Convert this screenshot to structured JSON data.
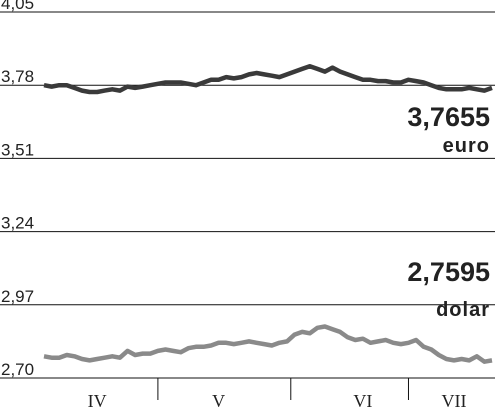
{
  "chart_data": {
    "type": "line",
    "categories": [
      null,
      null,
      null,
      null,
      null,
      null,
      null,
      "IV",
      null,
      null,
      null,
      null,
      null,
      null,
      null,
      null,
      null,
      null,
      null,
      null,
      null,
      null,
      null,
      "V",
      null,
      null,
      null,
      null,
      null,
      null,
      null,
      null,
      null,
      null,
      null,
      null,
      null,
      null,
      null,
      null,
      null,
      null,
      "VI",
      null,
      null,
      null,
      null,
      null,
      null,
      null,
      null,
      null,
      null,
      null,
      "VII",
      null,
      null,
      null,
      null,
      null
    ],
    "series": [
      {
        "name": "euro",
        "color": "#3a3a3a",
        "label": {
          "value": 3.7655,
          "label": "3,7655"
        },
        "values": [
          3.78,
          3.775,
          3.78,
          3.78,
          3.77,
          3.76,
          3.755,
          3.755,
          3.76,
          3.765,
          3.76,
          3.775,
          3.77,
          3.775,
          3.78,
          3.785,
          3.79,
          3.79,
          3.79,
          3.785,
          3.78,
          3.79,
          3.8,
          3.8,
          3.81,
          3.805,
          3.81,
          3.82,
          3.825,
          3.82,
          3.815,
          3.81,
          3.82,
          3.83,
          3.84,
          3.85,
          3.84,
          3.83,
          3.845,
          3.83,
          3.82,
          3.81,
          3.8,
          3.8,
          3.795,
          3.795,
          3.79,
          3.79,
          3.8,
          3.795,
          3.79,
          3.78,
          3.77,
          3.765,
          3.765,
          3.765,
          3.77,
          3.765,
          3.76,
          3.77
        ]
      },
      {
        "name": "dolar",
        "color": "#8a8a8a",
        "label": {
          "value": 2.7595,
          "label": "2,7595"
        },
        "values": [
          2.78,
          2.775,
          2.775,
          2.785,
          2.78,
          2.77,
          2.765,
          2.77,
          2.775,
          2.78,
          2.775,
          2.8,
          2.785,
          2.79,
          2.79,
          2.8,
          2.805,
          2.8,
          2.795,
          2.81,
          2.815,
          2.815,
          2.82,
          2.83,
          2.83,
          2.825,
          2.83,
          2.835,
          2.83,
          2.825,
          2.82,
          2.83,
          2.835,
          2.86,
          2.87,
          2.865,
          2.885,
          2.89,
          2.88,
          2.87,
          2.85,
          2.84,
          2.845,
          2.83,
          2.835,
          2.84,
          2.83,
          2.825,
          2.83,
          2.84,
          2.815,
          2.805,
          2.785,
          2.77,
          2.765,
          2.77,
          2.765,
          2.78,
          2.76,
          2.765
        ]
      }
    ],
    "ylim": [
      2.7,
      4.05
    ],
    "yticks": [
      {
        "value": 2.7,
        "label": "2,70"
      },
      {
        "value": 2.97,
        "label": "2,97"
      },
      {
        "value": 3.24,
        "label": "3,24"
      },
      {
        "value": 3.51,
        "label": "3,51"
      },
      {
        "value": 3.78,
        "label": "3,78"
      },
      {
        "value": 4.05,
        "label": "4,05"
      }
    ],
    "grid": true
  }
}
